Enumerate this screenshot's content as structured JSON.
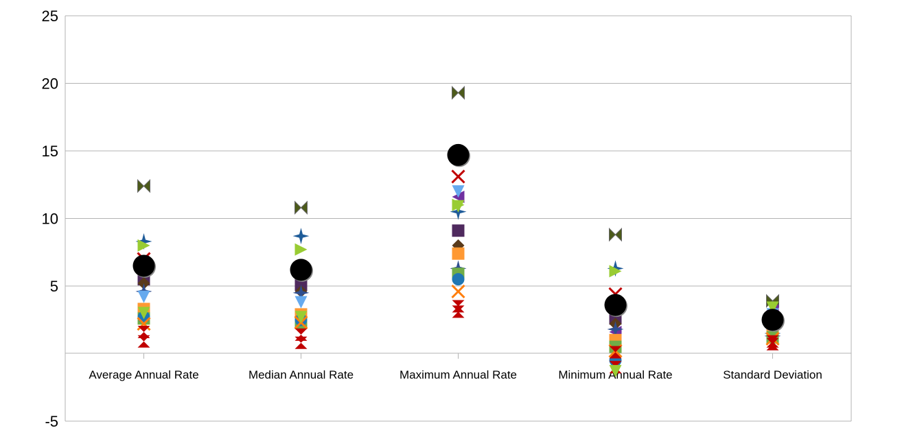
{
  "chart_data": {
    "type": "scatter",
    "title": "",
    "xlabel": "",
    "ylabel": "",
    "categories": [
      "Average Annual Rate",
      "Median Annual Rate",
      "Maximum Annual Rate",
      "Minimum Annual Rate",
      "Standard Deviation"
    ],
    "ylim": [
      -5,
      25
    ],
    "yticks": [
      -5,
      5,
      10,
      15,
      20,
      25
    ],
    "grid": true,
    "legend": "none",
    "series": [
      {
        "color": "#4c5a1a",
        "marker": "bowtie",
        "values": [
          12.4,
          10.8,
          19.3,
          8.8,
          3.9
        ]
      },
      {
        "color": "#1f5c99",
        "marker": "star4",
        "values": [
          8.3,
          8.7,
          10.5,
          6.3,
          1.5
        ]
      },
      {
        "color": "#99cc33",
        "marker": "triangle-right",
        "values": [
          8.0,
          7.7,
          11.0,
          6.1,
          1.6
        ]
      },
      {
        "color": "#c00000",
        "marker": "x",
        "values": [
          7.0,
          6.4,
          13.1,
          4.4,
          2.3
        ]
      },
      {
        "color": "#7030a0",
        "marker": "triangle-left",
        "values": [
          5.8,
          5.3,
          11.6,
          1.6,
          3.2
        ]
      },
      {
        "color": "#4f2a5e",
        "marker": "square",
        "values": [
          5.5,
          5.1,
          9.1,
          2.6,
          2.7
        ]
      },
      {
        "color": "#5a3a1a",
        "marker": "diamond",
        "values": [
          5.2,
          4.6,
          8.0,
          2.2,
          2.2
        ]
      },
      {
        "color": "#2f4f8f",
        "marker": "star4",
        "values": [
          4.6,
          4.5,
          6.3,
          1.8,
          1.3
        ]
      },
      {
        "color": "#66aaee",
        "marker": "triangle-down",
        "values": [
          4.2,
          3.8,
          12.0,
          0.8,
          2.9
        ]
      },
      {
        "color": "#ff9933",
        "marker": "square",
        "values": [
          3.3,
          2.9,
          7.4,
          1.0,
          1.9
        ]
      },
      {
        "color": "#70ad47",
        "marker": "square",
        "values": [
          2.6,
          2.3,
          5.9,
          0.5,
          1.2
        ]
      },
      {
        "color": "#1f77b4",
        "marker": "circle",
        "values": [
          2.7,
          2.5,
          5.5,
          -0.5,
          2.3
        ]
      },
      {
        "color": "#ff7f0e",
        "marker": "x",
        "values": [
          2.2,
          2.3,
          4.6,
          0.2,
          1.1
        ]
      },
      {
        "color": "#c00000",
        "marker": "hourglass",
        "values": [
          1.6,
          1.4,
          3.5,
          0.1,
          0.9
        ]
      },
      {
        "color": "#c00000",
        "marker": "hourglass",
        "values": [
          0.9,
          0.8,
          3.1,
          -1.0,
          0.7
        ]
      },
      {
        "color": "#99cc33",
        "marker": "triangle-down",
        "values": [
          3.0,
          2.7,
          10.9,
          -1.3,
          3.4
        ]
      },
      {
        "color": "#000000",
        "marker": "big-circle",
        "values": [
          6.5,
          6.2,
          14.7,
          3.6,
          2.5
        ]
      }
    ]
  }
}
